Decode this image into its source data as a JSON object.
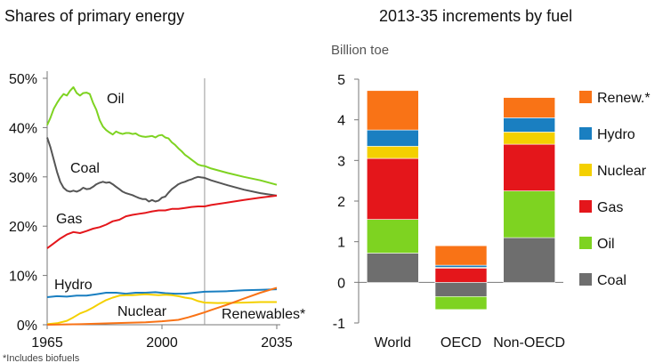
{
  "chart_data": [
    {
      "type": "line",
      "title": "Shares of primary energy",
      "x_ticks": [
        "1965",
        "2000",
        "2035"
      ],
      "y_ticks": [
        "0%",
        "10%",
        "20%",
        "30%",
        "40%",
        "50%"
      ],
      "xlim": [
        1965,
        2035
      ],
      "ylim": [
        0,
        50
      ],
      "divider_year": 2013,
      "footnote": "*Includes biofuels",
      "grid": false,
      "series": [
        {
          "name": "Oil",
          "color": "#7ed321",
          "points": [
            [
              1965,
              40.5
            ],
            [
              1966,
              42
            ],
            [
              1967,
              43.8
            ],
            [
              1968,
              45
            ],
            [
              1969,
              46
            ],
            [
              1970,
              46.8
            ],
            [
              1971,
              46.5
            ],
            [
              1972,
              47.5
            ],
            [
              1973,
              48.2
            ],
            [
              1974,
              47
            ],
            [
              1975,
              46.5
            ],
            [
              1976,
              47
            ],
            [
              1977,
              47.1
            ],
            [
              1978,
              46.8
            ],
            [
              1979,
              45
            ],
            [
              1980,
              43.6
            ],
            [
              1981,
              41.5
            ],
            [
              1982,
              40.2
            ],
            [
              1983,
              39.5
            ],
            [
              1984,
              39
            ],
            [
              1985,
              38.6
            ],
            [
              1986,
              39.2
            ],
            [
              1987,
              38.9
            ],
            [
              1988,
              38.7
            ],
            [
              1989,
              38.9
            ],
            [
              1990,
              38.9
            ],
            [
              1991,
              38.7
            ],
            [
              1992,
              38.8
            ],
            [
              1993,
              38.4
            ],
            [
              1994,
              38.2
            ],
            [
              1995,
              38.1
            ],
            [
              1996,
              38.2
            ],
            [
              1997,
              38.3
            ],
            [
              1998,
              38
            ],
            [
              1999,
              38.4
            ],
            [
              2000,
              38.5
            ],
            [
              2001,
              38
            ],
            [
              2002,
              37.8
            ],
            [
              2003,
              37
            ],
            [
              2004,
              36.5
            ],
            [
              2005,
              35.8
            ],
            [
              2006,
              35.2
            ],
            [
              2007,
              34.5
            ],
            [
              2008,
              34
            ],
            [
              2009,
              33.5
            ],
            [
              2010,
              33
            ],
            [
              2011,
              32.5
            ],
            [
              2012,
              32.3
            ],
            [
              2013,
              32.2
            ],
            [
              2015,
              31.7
            ],
            [
              2020,
              30.8
            ],
            [
              2025,
              30
            ],
            [
              2030,
              29.3
            ],
            [
              2035,
              28.4
            ]
          ]
        },
        {
          "name": "Coal",
          "color": "#555555",
          "points": [
            [
              1965,
              38
            ],
            [
              1966,
              36
            ],
            [
              1967,
              33.5
            ],
            [
              1968,
              31
            ],
            [
              1969,
              29
            ],
            [
              1970,
              27.8
            ],
            [
              1971,
              27.2
            ],
            [
              1972,
              27
            ],
            [
              1973,
              27.2
            ],
            [
              1974,
              27
            ],
            [
              1975,
              27.3
            ],
            [
              1976,
              27.8
            ],
            [
              1977,
              27.5
            ],
            [
              1978,
              27.6
            ],
            [
              1979,
              28
            ],
            [
              1980,
              28.5
            ],
            [
              1981,
              28.8
            ],
            [
              1982,
              29
            ],
            [
              1983,
              28.8
            ],
            [
              1984,
              28.9
            ],
            [
              1985,
              28.5
            ],
            [
              1986,
              28
            ],
            [
              1987,
              27.5
            ],
            [
              1988,
              27
            ],
            [
              1989,
              26.7
            ],
            [
              1990,
              26.5
            ],
            [
              1991,
              26.3
            ],
            [
              1992,
              26
            ],
            [
              1993,
              25.7
            ],
            [
              1994,
              25.5
            ],
            [
              1995,
              25.5
            ],
            [
              1996,
              25
            ],
            [
              1997,
              25.3
            ],
            [
              1998,
              25
            ],
            [
              1999,
              25.2
            ],
            [
              2000,
              25.8
            ],
            [
              2001,
              26
            ],
            [
              2002,
              26.8
            ],
            [
              2003,
              27.5
            ],
            [
              2004,
              28
            ],
            [
              2005,
              28.5
            ],
            [
              2006,
              28.8
            ],
            [
              2007,
              29
            ],
            [
              2008,
              29.3
            ],
            [
              2009,
              29.5
            ],
            [
              2010,
              29.8
            ],
            [
              2011,
              30
            ],
            [
              2012,
              29.9
            ],
            [
              2013,
              29.8
            ],
            [
              2015,
              29.3
            ],
            [
              2020,
              28.3
            ],
            [
              2025,
              27.4
            ],
            [
              2030,
              26.7
            ],
            [
              2035,
              26.2
            ]
          ]
        },
        {
          "name": "Gas",
          "color": "#e4161b",
          "points": [
            [
              1965,
              15.5
            ],
            [
              1967,
              16.5
            ],
            [
              1969,
              17.5
            ],
            [
              1971,
              18.3
            ],
            [
              1973,
              18.8
            ],
            [
              1975,
              18.6
            ],
            [
              1977,
              19
            ],
            [
              1979,
              19.5
            ],
            [
              1981,
              19.8
            ],
            [
              1983,
              20.3
            ],
            [
              1985,
              21
            ],
            [
              1987,
              21.3
            ],
            [
              1989,
              22
            ],
            [
              1991,
              22.3
            ],
            [
              1993,
              22.5
            ],
            [
              1995,
              22.7
            ],
            [
              1997,
              23
            ],
            [
              1999,
              23.2
            ],
            [
              2001,
              23.2
            ],
            [
              2003,
              23.5
            ],
            [
              2005,
              23.5
            ],
            [
              2007,
              23.7
            ],
            [
              2009,
              23.9
            ],
            [
              2011,
              24
            ],
            [
              2013,
              24
            ],
            [
              2015,
              24.3
            ],
            [
              2020,
              24.8
            ],
            [
              2025,
              25.3
            ],
            [
              2030,
              25.8
            ],
            [
              2035,
              26.2
            ]
          ]
        },
        {
          "name": "Hydro",
          "color": "#1a7fc1",
          "points": [
            [
              1965,
              5.6
            ],
            [
              1968,
              5.8
            ],
            [
              1971,
              5.7
            ],
            [
              1974,
              5.9
            ],
            [
              1977,
              5.9
            ],
            [
              1980,
              6.2
            ],
            [
              1983,
              6.5
            ],
            [
              1986,
              6.5
            ],
            [
              1989,
              6.3
            ],
            [
              1992,
              6.5
            ],
            [
              1995,
              6.5
            ],
            [
              1998,
              6.6
            ],
            [
              2001,
              6.4
            ],
            [
              2004,
              6.3
            ],
            [
              2007,
              6.3
            ],
            [
              2010,
              6.5
            ],
            [
              2013,
              6.7
            ],
            [
              2020,
              6.8
            ],
            [
              2025,
              7
            ],
            [
              2030,
              7.1
            ],
            [
              2035,
              7.2
            ]
          ]
        },
        {
          "name": "Nuclear",
          "color": "#f4d000",
          "points": [
            [
              1965,
              0.1
            ],
            [
              1968,
              0.3
            ],
            [
              1971,
              0.8
            ],
            [
              1973,
              1.5
            ],
            [
              1975,
              2.3
            ],
            [
              1977,
              2.8
            ],
            [
              1979,
              3.5
            ],
            [
              1981,
              4.3
            ],
            [
              1983,
              5
            ],
            [
              1985,
              5.5
            ],
            [
              1987,
              5.9
            ],
            [
              1989,
              6
            ],
            [
              1991,
              6
            ],
            [
              1993,
              6.1
            ],
            [
              1995,
              6.2
            ],
            [
              1997,
              6.1
            ],
            [
              1999,
              6
            ],
            [
              2001,
              6.1
            ],
            [
              2003,
              6
            ],
            [
              2005,
              5.8
            ],
            [
              2007,
              5.5
            ],
            [
              2009,
              5.3
            ],
            [
              2011,
              4.8
            ],
            [
              2013,
              4.5
            ],
            [
              2017,
              4.4
            ],
            [
              2025,
              4.5
            ],
            [
              2030,
              4.6
            ],
            [
              2035,
              4.6
            ]
          ]
        },
        {
          "name": "Renewables*",
          "color": "#f97316",
          "points": [
            [
              1965,
              0
            ],
            [
              1975,
              0.1
            ],
            [
              1985,
              0.3
            ],
            [
              1990,
              0.4
            ],
            [
              1995,
              0.5
            ],
            [
              2000,
              0.7
            ],
            [
              2005,
              1
            ],
            [
              2008,
              1.5
            ],
            [
              2010,
              1.9
            ],
            [
              2013,
              2.5
            ],
            [
              2015,
              3
            ],
            [
              2020,
              4.1
            ],
            [
              2025,
              5.3
            ],
            [
              2030,
              6.5
            ],
            [
              2035,
              7.5
            ]
          ]
        }
      ]
    },
    {
      "type": "bar",
      "subtype": "stacked",
      "title": "2013-35 increments by fuel",
      "ylabel": "Billion toe",
      "categories": [
        "World",
        "OECD",
        "Non-OECD"
      ],
      "y_ticks": [
        "-1",
        "0",
        "1",
        "2",
        "3",
        "4",
        "5"
      ],
      "ylim": [
        -1,
        5
      ],
      "grid": false,
      "legend_position": "right",
      "series": [
        {
          "name": "Coal",
          "color": "#6e6e6e",
          "values": [
            0.72,
            -0.35,
            1.1
          ]
        },
        {
          "name": "Oil",
          "color": "#7ed321",
          "values": [
            0.83,
            -0.32,
            1.15
          ]
        },
        {
          "name": "Gas",
          "color": "#e4161b",
          "values": [
            1.5,
            0.35,
            1.15
          ]
        },
        {
          "name": "Nuclear",
          "color": "#f4d000",
          "values": [
            0.3,
            0.02,
            0.3
          ]
        },
        {
          "name": "Hydro",
          "color": "#1a7fc1",
          "values": [
            0.4,
            0.05,
            0.35
          ]
        },
        {
          "name": "Renew.*",
          "color": "#f97316",
          "values": [
            0.97,
            0.48,
            0.5
          ]
        }
      ]
    }
  ]
}
